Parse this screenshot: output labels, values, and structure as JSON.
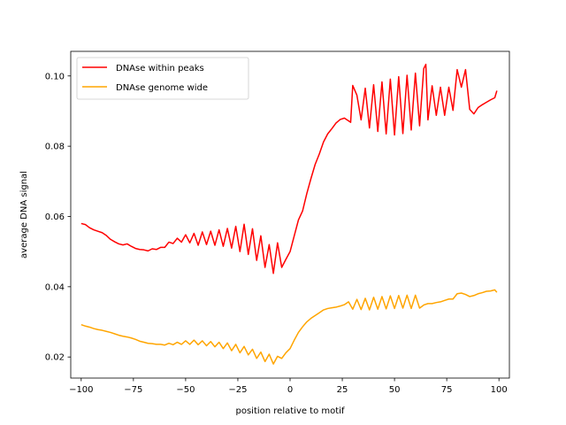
{
  "chart_data": {
    "type": "line",
    "title": "",
    "xlabel": "position relative to motif",
    "ylabel": "average DNA signal",
    "xlim": [
      -105,
      105
    ],
    "ylim": [
      0.014,
      0.107
    ],
    "x_ticks": [
      -100,
      -75,
      -50,
      -25,
      0,
      25,
      50,
      75,
      100
    ],
    "x_tick_labels": [
      "−100",
      "−75",
      "−50",
      "−25",
      "0",
      "25",
      "50",
      "75",
      "100"
    ],
    "y_ticks": [
      0.02,
      0.04,
      0.06,
      0.08,
      0.1
    ],
    "y_tick_labels": [
      "0.02",
      "0.04",
      "0.06",
      "0.08",
      "0.10"
    ],
    "grid": false,
    "legend_position": "top-left",
    "series": [
      {
        "name": "DNAse within peaks",
        "color": "#ff0000",
        "x": [
          -100,
          -98,
          -96,
          -94,
          -92,
          -90,
          -88,
          -86,
          -84,
          -82,
          -80,
          -78,
          -76,
          -74,
          -72,
          -70,
          -68,
          -66,
          -64,
          -62,
          -60,
          -58,
          -56,
          -54,
          -52,
          -50,
          -48,
          -46,
          -44,
          -42,
          -40,
          -38,
          -36,
          -34,
          -32,
          -30,
          -28,
          -26,
          -24,
          -22,
          -20,
          -18,
          -16,
          -14,
          -12,
          -10,
          -8,
          -6,
          -4,
          -2,
          0,
          2,
          4,
          6,
          8,
          10,
          12,
          14,
          16,
          18,
          20,
          22,
          24,
          26,
          28,
          29,
          30,
          32,
          34,
          36,
          38,
          40,
          42,
          44,
          46,
          48,
          50,
          52,
          54,
          56,
          58,
          60,
          62,
          64,
          65,
          66,
          68,
          70,
          72,
          74,
          76,
          78,
          80,
          82,
          84,
          86,
          88,
          90,
          92,
          94,
          96,
          98,
          99
        ],
        "y": [
          0.058,
          0.0577,
          0.0568,
          0.0562,
          0.0558,
          0.0554,
          0.0546,
          0.0535,
          0.0528,
          0.0522,
          0.0519,
          0.0522,
          0.0515,
          0.0509,
          0.0506,
          0.0505,
          0.0502,
          0.0508,
          0.0506,
          0.0512,
          0.0512,
          0.0527,
          0.0523,
          0.0538,
          0.0527,
          0.0548,
          0.0525,
          0.0552,
          0.0518,
          0.0556,
          0.052,
          0.0558,
          0.0518,
          0.0562,
          0.0515,
          0.0566,
          0.051,
          0.0572,
          0.05,
          0.0578,
          0.0492,
          0.0565,
          0.0475,
          0.0545,
          0.0455,
          0.052,
          0.0438,
          0.0525,
          0.0455,
          0.0478,
          0.05,
          0.0545,
          0.059,
          0.0616,
          0.0665,
          0.0708,
          0.0748,
          0.0778,
          0.0812,
          0.0835,
          0.085,
          0.0866,
          0.0876,
          0.088,
          0.0872,
          0.0868,
          0.0973,
          0.0945,
          0.0875,
          0.0965,
          0.0852,
          0.0975,
          0.0842,
          0.0983,
          0.0835,
          0.0991,
          0.0832,
          0.0998,
          0.0836,
          0.1002,
          0.0846,
          0.1008,
          0.0858,
          0.1021,
          0.1033,
          0.0875,
          0.0972,
          0.0888,
          0.0968,
          0.0888,
          0.0968,
          0.0902,
          0.1018,
          0.0968,
          0.1018,
          0.0905,
          0.0892,
          0.091,
          0.0918,
          0.0925,
          0.0932,
          0.0938,
          0.0958
        ]
      },
      {
        "name": "DNAse genome wide",
        "color": "#ffa500",
        "x": [
          -100,
          -98,
          -96,
          -94,
          -92,
          -90,
          -88,
          -86,
          -84,
          -82,
          -80,
          -78,
          -76,
          -74,
          -72,
          -70,
          -68,
          -66,
          -64,
          -62,
          -60,
          -58,
          -56,
          -54,
          -52,
          -50,
          -48,
          -46,
          -44,
          -42,
          -40,
          -38,
          -36,
          -34,
          -32,
          -30,
          -28,
          -26,
          -24,
          -22,
          -20,
          -18,
          -16,
          -14,
          -12,
          -10,
          -8,
          -6,
          -4,
          -2,
          0,
          2,
          4,
          6,
          8,
          10,
          12,
          14,
          16,
          18,
          20,
          22,
          24,
          26,
          28,
          30,
          32,
          34,
          36,
          38,
          40,
          42,
          44,
          46,
          48,
          50,
          52,
          54,
          56,
          58,
          60,
          62,
          64,
          66,
          68,
          70,
          72,
          74,
          76,
          78,
          80,
          82,
          84,
          86,
          88,
          90,
          92,
          94,
          96,
          98,
          99
        ],
        "y": [
          0.0292,
          0.0288,
          0.0285,
          0.0281,
          0.0278,
          0.0276,
          0.0273,
          0.027,
          0.0266,
          0.0262,
          0.0259,
          0.0257,
          0.0254,
          0.025,
          0.0245,
          0.0242,
          0.0239,
          0.0238,
          0.0236,
          0.0236,
          0.0234,
          0.0239,
          0.0235,
          0.0242,
          0.0236,
          0.0246,
          0.0236,
          0.0248,
          0.0235,
          0.0246,
          0.0232,
          0.0244,
          0.0229,
          0.0242,
          0.0224,
          0.024,
          0.0218,
          0.0236,
          0.0212,
          0.023,
          0.0206,
          0.0222,
          0.0196,
          0.0214,
          0.0187,
          0.0208,
          0.018,
          0.0202,
          0.0196,
          0.0212,
          0.0224,
          0.0248,
          0.027,
          0.0286,
          0.03,
          0.031,
          0.0318,
          0.0326,
          0.0334,
          0.0338,
          0.034,
          0.0342,
          0.0345,
          0.0349,
          0.0357,
          0.0336,
          0.0364,
          0.0335,
          0.0367,
          0.0334,
          0.037,
          0.0336,
          0.0372,
          0.0337,
          0.0374,
          0.0338,
          0.0375,
          0.0339,
          0.0376,
          0.0338,
          0.0376,
          0.0339,
          0.0348,
          0.0352,
          0.0352,
          0.0355,
          0.0357,
          0.0361,
          0.0365,
          0.0365,
          0.038,
          0.0382,
          0.0378,
          0.0372,
          0.0375,
          0.038,
          0.0383,
          0.0387,
          0.0388,
          0.0391,
          0.0384
        ]
      }
    ]
  }
}
